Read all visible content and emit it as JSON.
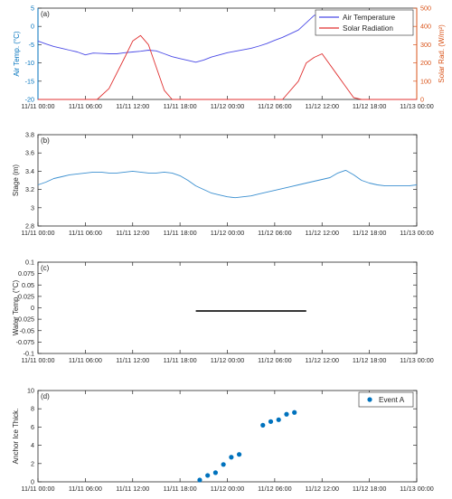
{
  "chart_data": [
    {
      "type": "line",
      "panel_label": "(a)",
      "xticks": [
        "11/11 00:00",
        "11/11 06:00",
        "11/11 12:00",
        "11/11 18:00",
        "11/12 00:00",
        "11/12 06:00",
        "11/12 12:00",
        "11/12 18:00",
        "11/13 00:00"
      ],
      "xlim_hours": [
        0,
        48
      ],
      "ylabel": "Air Temp. (°C)",
      "ylim": [
        -20,
        5
      ],
      "yticks": [
        "5",
        "0",
        "-5",
        "-10",
        "-15",
        "-20"
      ],
      "ylabel_right": "Solar Rad. (W/m²)",
      "ylim_right": [
        0,
        500
      ],
      "yticks_right": [
        "500",
        "400",
        "300",
        "200",
        "100",
        "0"
      ],
      "legend_position": "top-right",
      "left_color": "#0072BD",
      "right_color": "#D95319",
      "series": [
        {
          "name": "Air Temperature",
          "axis": "left",
          "color": "#4A4AE6",
          "x": [
            0,
            1,
            2,
            3,
            4,
            5,
            6,
            7,
            8,
            9,
            10,
            11,
            12,
            13,
            14,
            15,
            16,
            17,
            18,
            19,
            20,
            21,
            22,
            23,
            24,
            25,
            26,
            27,
            28,
            29,
            30,
            31,
            32,
            33,
            34,
            35,
            36,
            37,
            38,
            39,
            40
          ],
          "y": [
            -4,
            -4.8,
            -5.5,
            -6,
            -6.5,
            -7,
            -7.8,
            -7.3,
            -7.4,
            -7.5,
            -7.5,
            -7.2,
            -7,
            -6.8,
            -6.5,
            -6.7,
            -7.5,
            -8.3,
            -8.8,
            -9.3,
            -9.8,
            -9.2,
            -8.4,
            -7.8,
            -7.2,
            -6.8,
            -6.4,
            -6,
            -5.4,
            -4.7,
            -3.8,
            -3,
            -2,
            -1,
            1,
            3,
            3.5,
            3.9,
            4,
            4,
            4
          ]
        },
        {
          "name": "Solar Radiation",
          "axis": "right",
          "color": "#E03030",
          "x": [
            0,
            7.5,
            9,
            11,
            12,
            13,
            14,
            16,
            17,
            18,
            24,
            31,
            33,
            34,
            35,
            36,
            38,
            40,
            41,
            48
          ],
          "y": [
            0,
            0,
            60,
            230,
            320,
            350,
            300,
            50,
            0,
            0,
            0,
            0,
            100,
            200,
            230,
            250,
            130,
            10,
            0,
            0
          ]
        }
      ]
    },
    {
      "type": "line",
      "panel_label": "(b)",
      "xticks": [
        "11/11 00:00",
        "11/11 06:00",
        "11/11 12:00",
        "11/11 18:00",
        "11/12 00:00",
        "11/12 06:00",
        "11/12 12:00",
        "11/12 18:00",
        "11/13 00:00"
      ],
      "xlim_hours": [
        0,
        48
      ],
      "ylabel": "Stage (m)",
      "ylim": [
        2.8,
        3.8
      ],
      "yticks": [
        "3.8",
        "3.6",
        "3.4",
        "3.2",
        "3",
        "2.8"
      ],
      "series": [
        {
          "color": "#3A8FD0",
          "x": [
            0,
            1,
            2,
            3,
            4,
            5,
            6,
            7,
            8,
            9,
            10,
            11,
            12,
            13,
            14,
            15,
            16,
            17,
            18,
            19,
            20,
            21,
            22,
            23,
            24,
            25,
            26,
            27,
            28,
            29,
            30,
            31,
            32,
            33,
            34,
            35,
            36,
            37,
            38,
            39,
            40,
            41,
            42,
            43,
            44,
            45,
            46,
            47,
            48
          ],
          "y": [
            3.25,
            3.28,
            3.32,
            3.34,
            3.36,
            3.37,
            3.38,
            3.39,
            3.39,
            3.38,
            3.38,
            3.39,
            3.4,
            3.39,
            3.38,
            3.38,
            3.39,
            3.38,
            3.35,
            3.3,
            3.24,
            3.2,
            3.16,
            3.14,
            3.12,
            3.11,
            3.12,
            3.13,
            3.15,
            3.17,
            3.19,
            3.21,
            3.23,
            3.25,
            3.27,
            3.29,
            3.31,
            3.33,
            3.38,
            3.41,
            3.36,
            3.3,
            3.27,
            3.25,
            3.24,
            3.24,
            3.24,
            3.24,
            3.25
          ]
        }
      ]
    },
    {
      "type": "line",
      "panel_label": "(c)",
      "xticks": [
        "11/11 00:00",
        "11/11 06:00",
        "11/11 12:00",
        "11/11 18:00",
        "11/12 00:00",
        "11/12 06:00",
        "11/12 12:00",
        "11/12 18:00",
        "11/13 00:00"
      ],
      "xlim_hours": [
        0,
        48
      ],
      "ylabel": "Water Temp. (°C)",
      "ylim": [
        -0.1,
        0.1
      ],
      "yticks": [
        "0.1",
        "0.075",
        "0.05",
        "0.025",
        "0",
        "-0.025",
        "-0.05",
        "-0.075",
        "-0.1"
      ],
      "series": [
        {
          "color": "#1A1A1A",
          "x": [
            20,
            34
          ],
          "y": [
            -0.007,
            -0.007
          ]
        }
      ]
    },
    {
      "type": "scatter",
      "panel_label": "(d)",
      "xticks": [
        "11/11 00:00",
        "11/11 06:00",
        "11/11 12:00",
        "11/11 18:00",
        "11/12 00:00",
        "11/12 06:00",
        "11/12 12:00",
        "11/12 18:00",
        "11/13 00:00"
      ],
      "xlim_hours": [
        0,
        48
      ],
      "ylabel": "Anchor Ice Thick.",
      "ylim": [
        0,
        10
      ],
      "yticks": [
        "10",
        "8",
        "6",
        "4",
        "2",
        "0"
      ],
      "legend_position": "top-right",
      "series": [
        {
          "name": "Event A",
          "color": "#0072BD",
          "x": [
            20.5,
            21.5,
            22.5,
            23.5,
            24.5,
            25.5,
            28.5,
            29.5,
            30.5,
            31.5,
            32.5
          ],
          "y": [
            0.2,
            0.7,
            1,
            1.9,
            2.7,
            3,
            6.2,
            6.6,
            6.8,
            7.4,
            7.6
          ]
        }
      ]
    }
  ]
}
